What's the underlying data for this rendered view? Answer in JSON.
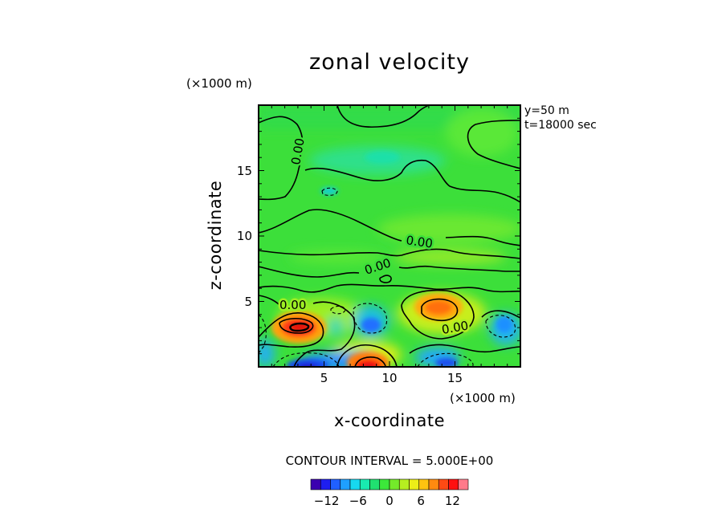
{
  "chart_data": {
    "type": "heatmap",
    "title": "zonal velocity",
    "xlabel": "x-coordinate",
    "ylabel": "z-coordinate",
    "x_unit_label": "(×1000 m)",
    "y_unit_label": "(×1000 m)",
    "info_lines": [
      "y=50  m",
      "t=18000 sec"
    ],
    "xlim": [
      0,
      20
    ],
    "ylim": [
      0,
      20
    ],
    "x_ticks": [
      5,
      10,
      15
    ],
    "y_ticks": [
      5,
      10,
      15
    ],
    "contour_interval_label": "CONTOUR INTERVAL = 5.000E+00",
    "contour_label": "0.00",
    "colorbar": {
      "ticks": [
        -12,
        -6,
        0,
        6,
        12
      ],
      "tick_labels": [
        "−12",
        "−6",
        "0",
        "6",
        "12"
      ],
      "range": [
        -15,
        15
      ],
      "colors": [
        "#3b00b0",
        "#1e1ef0",
        "#2060ff",
        "#1fa0ff",
        "#17d9f0",
        "#19eab0",
        "#20e070",
        "#3ce83a",
        "#74ea2a",
        "#b6ee20",
        "#ecee18",
        "#ffc310",
        "#ff8a10",
        "#ff4a14",
        "#ff1010",
        "#ff7a8a"
      ]
    },
    "features": [
      {
        "kind": "max",
        "x": 3.2,
        "z": 3.0,
        "value": 12
      },
      {
        "kind": "max",
        "x": 8.2,
        "z": 0.4,
        "value": 14
      },
      {
        "kind": "max",
        "x": 13.8,
        "z": 4.5,
        "value": 9
      },
      {
        "kind": "max",
        "x": 7.2,
        "z": 0.8,
        "value": 6
      },
      {
        "kind": "min",
        "x": 3.8,
        "z": 0.2,
        "value": -12
      },
      {
        "kind": "min",
        "x": 9.8,
        "z": 3.5,
        "value": -6
      },
      {
        "kind": "min",
        "x": 14.5,
        "z": 0.5,
        "value": -8
      },
      {
        "kind": "min",
        "x": 18.5,
        "z": 3.0,
        "value": -5
      },
      {
        "kind": "min",
        "x": 0.5,
        "z": 1.0,
        "value": -6
      },
      {
        "kind": "min",
        "x": 5.8,
        "z": 3.8,
        "value": -4
      },
      {
        "kind": "min",
        "x": 5.3,
        "z": 13.5,
        "value": -4
      },
      {
        "kind": "min",
        "x": 9.5,
        "z": 15.5,
        "value": -3
      }
    ]
  }
}
